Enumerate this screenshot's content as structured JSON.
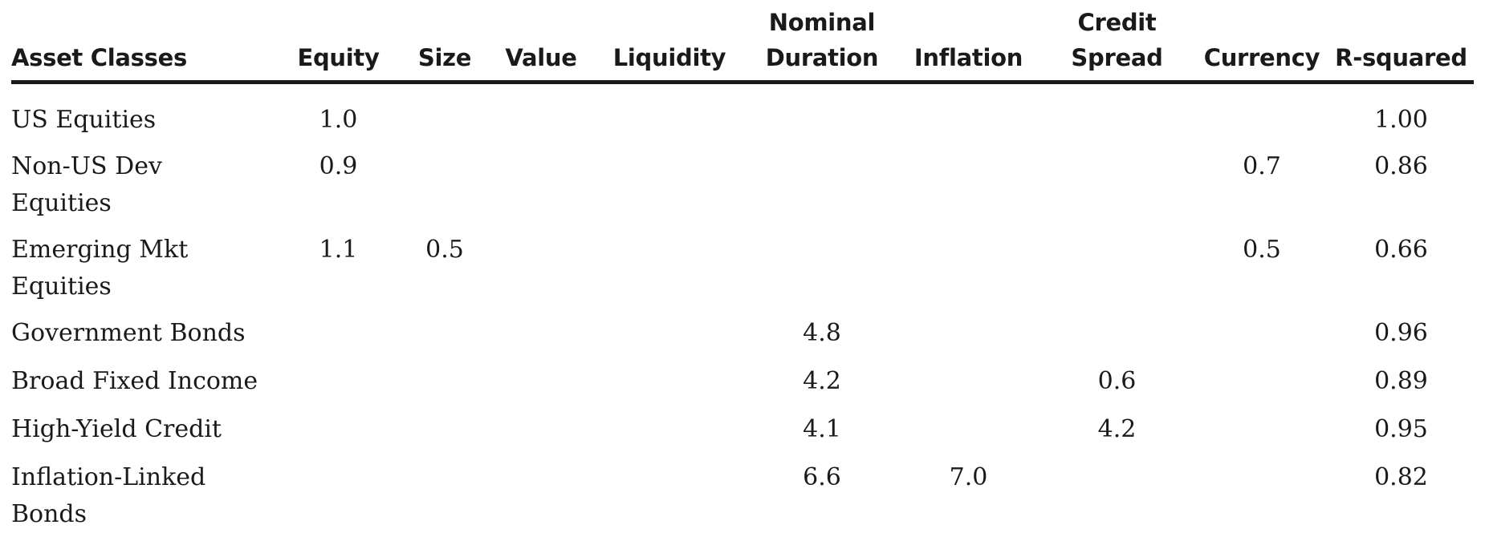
{
  "table": {
    "columns": [
      [
        "Asset Classes"
      ],
      [
        "Equity"
      ],
      [
        "Size"
      ],
      [
        "Value"
      ],
      [
        "Liquidity"
      ],
      [
        "Nominal",
        "Duration"
      ],
      [
        "Inflation"
      ],
      [
        "Credit",
        "Spread"
      ],
      [
        "Currency"
      ],
      [
        "R-squared"
      ]
    ],
    "rows": [
      {
        "name": [
          "US Equities"
        ],
        "cells": [
          "1.0",
          "",
          "",
          "",
          "",
          "",
          "",
          "",
          "1.00"
        ]
      },
      {
        "name": [
          "Non-US Dev",
          "Equities"
        ],
        "cells": [
          "0.9",
          "",
          "",
          "",
          "",
          "",
          "",
          "0.7",
          "0.86"
        ]
      },
      {
        "name": [
          "Emerging Mkt",
          "Equities"
        ],
        "cells": [
          "1.1",
          "0.5",
          "",
          "",
          "",
          "",
          "",
          "0.5",
          "0.66"
        ]
      },
      {
        "name": [
          "Government Bonds"
        ],
        "cells": [
          "",
          "",
          "",
          "",
          "4.8",
          "",
          "",
          "",
          "0.96"
        ]
      },
      {
        "name": [
          "Broad Fixed Income"
        ],
        "cells": [
          "",
          "",
          "",
          "",
          "4.2",
          "",
          "0.6",
          "",
          "0.89"
        ]
      },
      {
        "name": [
          "High-Yield Credit"
        ],
        "cells": [
          "",
          "",
          "",
          "",
          "4.1",
          "",
          "4.2",
          "",
          "0.95"
        ]
      },
      {
        "name": [
          "Inflation-Linked",
          "Bonds"
        ],
        "cells": [
          "",
          "",
          "",
          "",
          "6.6",
          "7.0",
          "",
          "",
          "0.82"
        ]
      }
    ]
  }
}
